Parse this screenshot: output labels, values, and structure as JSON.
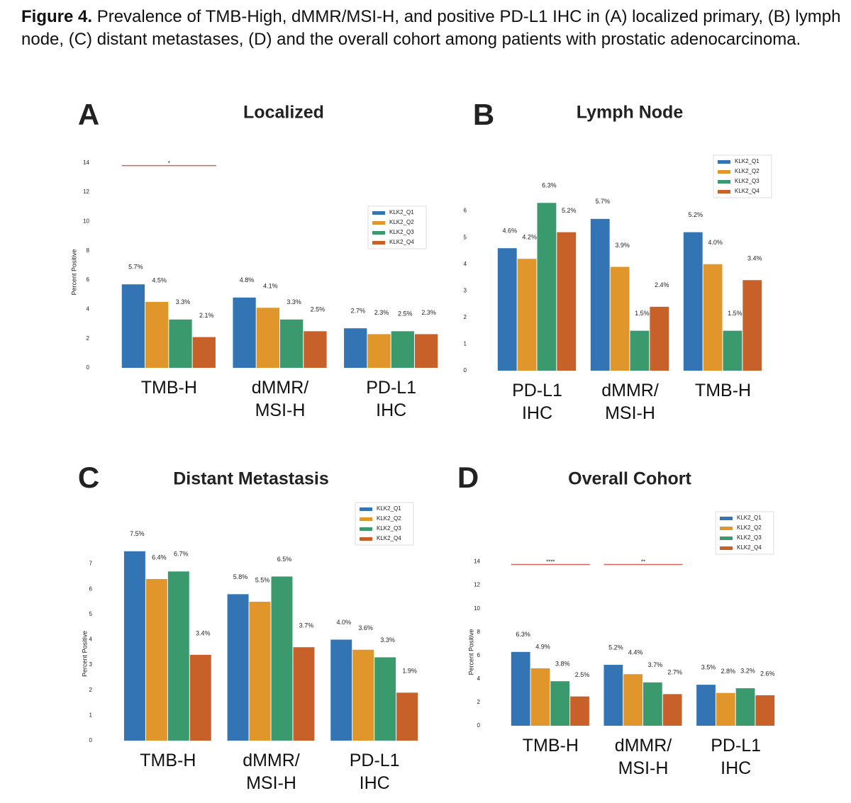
{
  "caption": {
    "label": "Figure 4.",
    "text": " Prevalence of TMB-High, dMMR/MSI-H, and positive PD-L1 IHC in (A) localized primary, (B) lymph node, (C) distant metastases, (D) and the overall cohort among patients with prostatic adenocarcinoma."
  },
  "chart_data": [
    {
      "type": "bar",
      "panel": "A",
      "title": "Localized",
      "ylabel": "Percent Positive",
      "categories": [
        "TMB-H",
        "dMMR/\nMSI-H",
        "PD-L1\nIHC"
      ],
      "significance": [
        "*",
        null,
        null
      ],
      "series": [
        {
          "name": "KLK2_Q1",
          "color": "#3274b4",
          "values": [
            5.7,
            4.8,
            2.7
          ],
          "value_labels": [
            "5.7%",
            "4.8%",
            "2.7%"
          ]
        },
        {
          "name": "KLK2_Q2",
          "color": "#e0962a",
          "values": [
            4.5,
            4.1,
            2.3
          ],
          "value_labels": [
            "4.5%",
            "4.1%",
            "2.3%"
          ]
        },
        {
          "name": "KLK2_Q3",
          "color": "#3a9a6e",
          "values": [
            3.3,
            3.3,
            2.5
          ],
          "value_labels": [
            "3.3%",
            "3.3%",
            "2.5%"
          ]
        },
        {
          "name": "KLK2_Q4",
          "color": "#c8602a",
          "values": [
            2.1,
            2.5,
            2.3
          ],
          "value_labels": [
            "2.1%",
            "2.5%",
            "2.3%"
          ]
        }
      ],
      "ylim": [
        0,
        15
      ],
      "yticks": [
        0,
        2,
        4,
        6,
        8,
        10,
        12,
        14
      ],
      "legend": "right"
    },
    {
      "type": "bar",
      "panel": "B",
      "title": "Lymph Node",
      "categories": [
        "PD-L1\nIHC",
        "dMMR/\nMSI-H",
        "TMB-H"
      ],
      "series": [
        {
          "name": "KLK2_Q1",
          "color": "#3274b4",
          "values": [
            4.6,
            5.7,
            5.2
          ],
          "value_labels": [
            "4.6%",
            "5.7%",
            "5.2%"
          ]
        },
        {
          "name": "KLK2_Q2",
          "color": "#e0962a",
          "values": [
            4.2,
            3.9,
            4.0
          ],
          "value_labels": [
            "4.2%",
            "3.9%",
            "4.0%"
          ]
        },
        {
          "name": "KLK2_Q3",
          "color": "#3a9a6e",
          "values": [
            6.3,
            1.5,
            1.5
          ],
          "value_labels": [
            "6.3%",
            "1.5%",
            "1.5%"
          ]
        },
        {
          "name": "KLK2_Q4",
          "color": "#c8602a",
          "values": [
            5.2,
            2.4,
            3.4
          ],
          "value_labels": [
            "5.2%",
            "2.4%",
            "3.4%"
          ]
        }
      ],
      "ylim": [
        0,
        7
      ],
      "yticks": [
        0,
        1,
        2,
        3,
        4,
        5,
        6
      ],
      "legend": "upper right"
    },
    {
      "type": "bar",
      "panel": "C",
      "title": "Distant Metastasis",
      "ylabel": "Percent Positive",
      "categories": [
        "TMB-H",
        "dMMR/\nMSI-H",
        "PD-L1\nIHC"
      ],
      "series": [
        {
          "name": "KLK2_Q1",
          "color": "#3274b4",
          "values": [
            7.5,
            5.8,
            4.0
          ],
          "value_labels": [
            "7.5%",
            "5.8%",
            "4.0%"
          ]
        },
        {
          "name": "KLK2_Q2",
          "color": "#e0962a",
          "values": [
            6.4,
            5.5,
            3.6
          ],
          "value_labels": [
            "6.4%",
            "5.5%",
            "3.6%"
          ]
        },
        {
          "name": "KLK2_Q3",
          "color": "#3a9a6e",
          "values": [
            6.7,
            6.5,
            3.3
          ],
          "value_labels": [
            "6.7%",
            "6.5%",
            "3.3%"
          ]
        },
        {
          "name": "KLK2_Q4",
          "color": "#c8602a",
          "values": [
            3.4,
            3.7,
            1.9
          ],
          "value_labels": [
            "3.4%",
            "3.7%",
            "1.9%"
          ]
        }
      ],
      "ylim": [
        0,
        8
      ],
      "yticks": [
        0,
        1,
        2,
        3,
        4,
        5,
        6,
        7
      ],
      "legend": "upper right"
    },
    {
      "type": "bar",
      "panel": "D",
      "title": "Overall Cohort",
      "ylabel": "Percent Positive",
      "categories": [
        "TMB-H",
        "dMMR/\nMSI-H",
        "PD-L1\nIHC"
      ],
      "significance": [
        "****",
        "**",
        null
      ],
      "series": [
        {
          "name": "KLK2_Q1",
          "color": "#3274b4",
          "values": [
            6.3,
            5.2,
            3.5
          ],
          "value_labels": [
            "6.3%",
            "5.2%",
            "3.5%"
          ]
        },
        {
          "name": "KLK2_Q2",
          "color": "#e0962a",
          "values": [
            4.9,
            4.4,
            2.8
          ],
          "value_labels": [
            "4.9%",
            "4.4%",
            "2.8%"
          ]
        },
        {
          "name": "KLK2_Q3",
          "color": "#3a9a6e",
          "values": [
            3.8,
            3.7,
            3.2
          ],
          "value_labels": [
            "3.8%",
            "3.7%",
            "3.2%"
          ]
        },
        {
          "name": "KLK2_Q4",
          "color": "#c8602a",
          "values": [
            2.5,
            2.7,
            2.6
          ],
          "value_labels": [
            "2.5%",
            "2.7%",
            "2.6%"
          ]
        }
      ],
      "ylim": [
        0,
        15
      ],
      "yticks": [
        0,
        2,
        4,
        6,
        8,
        10,
        12,
        14
      ],
      "legend": "upper right"
    }
  ]
}
